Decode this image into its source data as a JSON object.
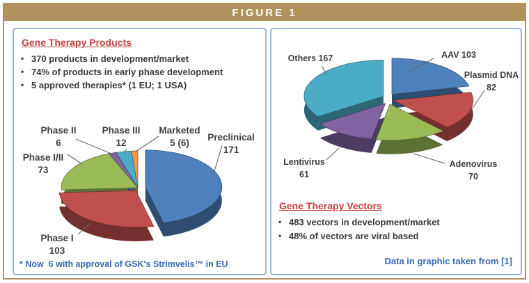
{
  "figure": {
    "title": "FIGURE 1"
  },
  "colors": {
    "banner": "#b2925c",
    "panel_border": "#9ab4d6",
    "heading_red": "#c0403d",
    "note_blue": "#3a68b0",
    "text_ink": "#3a3a3a",
    "leader_line": "#666666"
  },
  "left_panel": {
    "heading": "Gene Therapy Products",
    "bullets": [
      "370 products in development/market",
      "74% of products in early phase development",
      "5 approved therapies* (1 EU; 1 USA)"
    ],
    "footnote": "* Now  6 with approval of GSK's Strimvelis™ in EU"
  },
  "right_panel": {
    "heading": "Gene Therapy Vectors",
    "bullets": [
      "483 vectors in development/market",
      "48% of vectors are viral based"
    ],
    "source": "Data in graphic taken from [1]"
  },
  "chart_data": [
    {
      "type": "pie",
      "style": "3d-exploded",
      "title": "Gene therapy products by development phase",
      "total": 370,
      "start_angle_deg": -90,
      "clockwise": true,
      "legend_position": "data-labels",
      "slices": [
        {
          "label": "Preclinical",
          "value": 171,
          "display": "171",
          "color": "#4f81bd"
        },
        {
          "label": "Phase I",
          "value": 103,
          "display": "103",
          "color": "#c0504d"
        },
        {
          "label": "Phase I/II",
          "value": 73,
          "display": "73",
          "color": "#9bbb59"
        },
        {
          "label": "Phase II",
          "value": 6,
          "display": "6",
          "color": "#8064a2"
        },
        {
          "label": "Phase III",
          "value": 12,
          "display": "12",
          "color": "#4bacc6"
        },
        {
          "label": "Marketed",
          "value": 5,
          "display": "5 (6)",
          "color": "#f79646"
        }
      ]
    },
    {
      "type": "pie",
      "style": "3d-exploded",
      "title": "Gene therapy vectors",
      "total": 483,
      "start_angle_deg": -90,
      "clockwise": true,
      "legend_position": "data-labels",
      "slices": [
        {
          "label": "AAV",
          "value": 103,
          "display": "103",
          "color": "#4f81bd"
        },
        {
          "label": "Plasmid DNA",
          "value": 82,
          "display": "82",
          "color": "#c0504d"
        },
        {
          "label": "Adenovirus",
          "value": 70,
          "display": "70",
          "color": "#9bbb59"
        },
        {
          "label": "Lentivirus",
          "value": 61,
          "display": "61",
          "color": "#8064a2"
        },
        {
          "label": "Others",
          "value": 167,
          "display": "167",
          "color": "#4bacc6"
        }
      ]
    }
  ]
}
